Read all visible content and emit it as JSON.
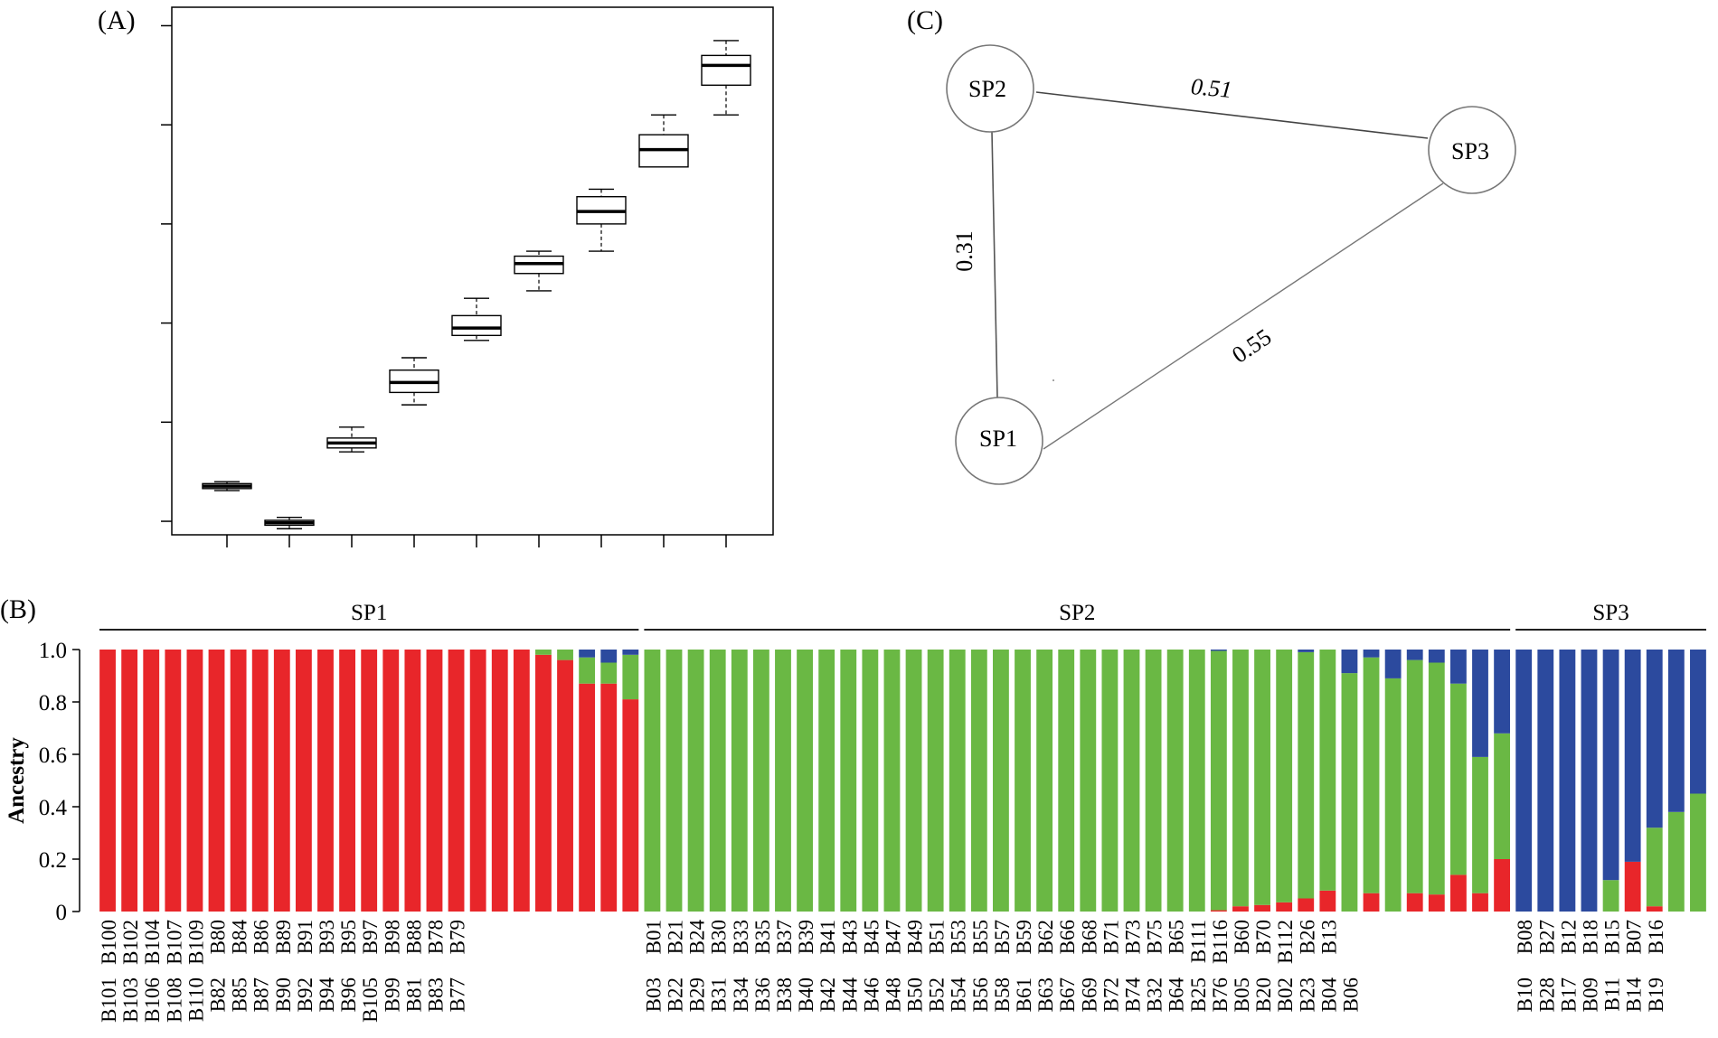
{
  "panel_labels": {
    "a": "(A)",
    "b": "(B)",
    "c": "(C)"
  },
  "colors": {
    "sp1": "#e8262a",
    "sp2": "#6ab844",
    "sp3": "#2c4a9e",
    "line": "#000000",
    "edge": "#777777"
  },
  "chart_data": [
    {
      "type": "box",
      "panel": "(A)",
      "title": "",
      "xlabel": "",
      "ylabel": "",
      "ylim": [
        -0.2,
        10.3
      ],
      "n_yticks": 6,
      "n_xticks": 9,
      "boxes": [
        {
          "whisker_low": 0.62,
          "q1": 0.66,
          "median": 0.71,
          "q3": 0.76,
          "whisker_high": 0.8
        },
        {
          "whisker_low": -0.15,
          "q1": -0.08,
          "median": -0.03,
          "q3": 0.02,
          "whisker_high": 0.08
        },
        {
          "whisker_low": 1.4,
          "q1": 1.48,
          "median": 1.58,
          "q3": 1.68,
          "whisker_high": 1.9
        },
        {
          "whisker_low": 2.35,
          "q1": 2.6,
          "median": 2.8,
          "q3": 3.05,
          "whisker_high": 3.3
        },
        {
          "whisker_low": 3.65,
          "q1": 3.75,
          "median": 3.9,
          "q3": 4.15,
          "whisker_high": 4.5
        },
        {
          "whisker_low": 4.65,
          "q1": 5.0,
          "median": 5.2,
          "q3": 5.35,
          "whisker_high": 5.45
        },
        {
          "whisker_low": 5.45,
          "q1": 6.0,
          "median": 6.25,
          "q3": 6.55,
          "whisker_high": 6.7
        },
        {
          "whisker_low": 7.15,
          "q1": 7.15,
          "median": 7.5,
          "q3": 7.8,
          "whisker_high": 8.2
        },
        {
          "whisker_low": 8.2,
          "q1": 8.8,
          "median": 9.2,
          "q3": 9.4,
          "whisker_high": 9.7
        }
      ]
    },
    {
      "type": "bar",
      "stacked": true,
      "panel": "(B)",
      "ylabel": "Ancestry",
      "ylim": [
        0,
        1.0
      ],
      "yticks": [
        "0",
        "0.2",
        "0.4",
        "0.6",
        "0.8",
        "1.0"
      ],
      "groups": [
        {
          "name": "SP1",
          "from": 0,
          "to": 24
        },
        {
          "name": "SP2",
          "from": 25,
          "to": 64
        },
        {
          "name": "SP3",
          "from": 65,
          "to": 73
        }
      ],
      "bars": [
        {
          "top": "B100",
          "bottom": "B101",
          "sp1": 1.0,
          "sp2": 0.0,
          "sp3": 0.0
        },
        {
          "top": "B102",
          "bottom": "B103",
          "sp1": 1.0,
          "sp2": 0.0,
          "sp3": 0.0
        },
        {
          "top": "B104",
          "bottom": "B106",
          "sp1": 1.0,
          "sp2": 0.0,
          "sp3": 0.0
        },
        {
          "top": "B107",
          "bottom": "B108",
          "sp1": 1.0,
          "sp2": 0.0,
          "sp3": 0.0
        },
        {
          "top": "B109",
          "bottom": "B110",
          "sp1": 1.0,
          "sp2": 0.0,
          "sp3": 0.0
        },
        {
          "top": "B80",
          "bottom": "B82",
          "sp1": 1.0,
          "sp2": 0.0,
          "sp3": 0.0
        },
        {
          "top": "B84",
          "bottom": "B85",
          "sp1": 1.0,
          "sp2": 0.0,
          "sp3": 0.0
        },
        {
          "top": "B86",
          "bottom": "B87",
          "sp1": 1.0,
          "sp2": 0.0,
          "sp3": 0.0
        },
        {
          "top": "B89",
          "bottom": "B90",
          "sp1": 1.0,
          "sp2": 0.0,
          "sp3": 0.0
        },
        {
          "top": "B91",
          "bottom": "B92",
          "sp1": 1.0,
          "sp2": 0.0,
          "sp3": 0.0
        },
        {
          "top": "B93",
          "bottom": "B94",
          "sp1": 1.0,
          "sp2": 0.0,
          "sp3": 0.0
        },
        {
          "top": "B95",
          "bottom": "B96",
          "sp1": 1.0,
          "sp2": 0.0,
          "sp3": 0.0
        },
        {
          "top": "B97",
          "bottom": "B105",
          "sp1": 1.0,
          "sp2": 0.0,
          "sp3": 0.0
        },
        {
          "top": "B98",
          "bottom": "B99",
          "sp1": 1.0,
          "sp2": 0.0,
          "sp3": 0.0
        },
        {
          "top": "B88",
          "bottom": "B81",
          "sp1": 1.0,
          "sp2": 0.0,
          "sp3": 0.0
        },
        {
          "top": "B78",
          "bottom": "B83",
          "sp1": 1.0,
          "sp2": 0.0,
          "sp3": 0.0
        },
        {
          "top": "B79",
          "bottom": "B77",
          "sp1": 1.0,
          "sp2": 0.0,
          "sp3": 0.0
        },
        {
          "top": "",
          "bottom": "",
          "sp1": 1.0,
          "sp2": 0.0,
          "sp3": 0.0
        },
        {
          "top": "",
          "bottom": "",
          "sp1": 1.0,
          "sp2": 0.0,
          "sp3": 0.0
        },
        {
          "top": "",
          "bottom": "",
          "sp1": 1.0,
          "sp2": 0.0,
          "sp3": 0.0
        },
        {
          "top": "",
          "bottom": "",
          "sp1": 0.98,
          "sp2": 0.02,
          "sp3": 0.0
        },
        {
          "top": "",
          "bottom": "",
          "sp1": 0.96,
          "sp2": 0.04,
          "sp3": 0.0
        },
        {
          "top": "",
          "bottom": "",
          "sp1": 0.87,
          "sp2": 0.1,
          "sp3": 0.03
        },
        {
          "top": "",
          "bottom": "",
          "sp1": 0.87,
          "sp2": 0.08,
          "sp3": 0.05
        },
        {
          "top": "",
          "bottom": "",
          "sp1": 0.81,
          "sp2": 0.17,
          "sp3": 0.02
        },
        {
          "top": "B01",
          "bottom": "B03",
          "sp1": 0.0,
          "sp2": 1.0,
          "sp3": 0.0
        },
        {
          "top": "B21",
          "bottom": "B22",
          "sp1": 0.0,
          "sp2": 1.0,
          "sp3": 0.0
        },
        {
          "top": "B24",
          "bottom": "B29",
          "sp1": 0.0,
          "sp2": 1.0,
          "sp3": 0.0
        },
        {
          "top": "B30",
          "bottom": "B31",
          "sp1": 0.0,
          "sp2": 1.0,
          "sp3": 0.0
        },
        {
          "top": "B33",
          "bottom": "B34",
          "sp1": 0.0,
          "sp2": 1.0,
          "sp3": 0.0
        },
        {
          "top": "B35",
          "bottom": "B36",
          "sp1": 0.0,
          "sp2": 1.0,
          "sp3": 0.0
        },
        {
          "top": "B37",
          "bottom": "B38",
          "sp1": 0.0,
          "sp2": 1.0,
          "sp3": 0.0
        },
        {
          "top": "B39",
          "bottom": "B40",
          "sp1": 0.0,
          "sp2": 1.0,
          "sp3": 0.0
        },
        {
          "top": "B41",
          "bottom": "B42",
          "sp1": 0.0,
          "sp2": 1.0,
          "sp3": 0.0
        },
        {
          "top": "B43",
          "bottom": "B44",
          "sp1": 0.0,
          "sp2": 1.0,
          "sp3": 0.0
        },
        {
          "top": "B45",
          "bottom": "B46",
          "sp1": 0.0,
          "sp2": 1.0,
          "sp3": 0.0
        },
        {
          "top": "B47",
          "bottom": "B48",
          "sp1": 0.0,
          "sp2": 1.0,
          "sp3": 0.0
        },
        {
          "top": "B49",
          "bottom": "B50",
          "sp1": 0.0,
          "sp2": 1.0,
          "sp3": 0.0
        },
        {
          "top": "B51",
          "bottom": "B52",
          "sp1": 0.0,
          "sp2": 1.0,
          "sp3": 0.0
        },
        {
          "top": "B53",
          "bottom": "B54",
          "sp1": 0.0,
          "sp2": 1.0,
          "sp3": 0.0
        },
        {
          "top": "B55",
          "bottom": "B56",
          "sp1": 0.0,
          "sp2": 1.0,
          "sp3": 0.0
        },
        {
          "top": "B57",
          "bottom": "B58",
          "sp1": 0.0,
          "sp2": 1.0,
          "sp3": 0.0
        },
        {
          "top": "B59",
          "bottom": "B61",
          "sp1": 0.0,
          "sp2": 1.0,
          "sp3": 0.0
        },
        {
          "top": "B62",
          "bottom": "B63",
          "sp1": 0.0,
          "sp2": 1.0,
          "sp3": 0.0
        },
        {
          "top": "B66",
          "bottom": "B67",
          "sp1": 0.0,
          "sp2": 1.0,
          "sp3": 0.0
        },
        {
          "top": "B68",
          "bottom": "B69",
          "sp1": 0.0,
          "sp2": 1.0,
          "sp3": 0.0
        },
        {
          "top": "B71",
          "bottom": "B72",
          "sp1": 0.0,
          "sp2": 1.0,
          "sp3": 0.0
        },
        {
          "top": "B73",
          "bottom": "B74",
          "sp1": 0.0,
          "sp2": 1.0,
          "sp3": 0.0
        },
        {
          "top": "B75",
          "bottom": "B32",
          "sp1": 0.0,
          "sp2": 1.0,
          "sp3": 0.0
        },
        {
          "top": "B65",
          "bottom": "B64",
          "sp1": 0.0,
          "sp2": 1.0,
          "sp3": 0.0
        },
        {
          "top": "B111",
          "bottom": "B25",
          "sp1": 0.0,
          "sp2": 1.0,
          "sp3": 0.0
        },
        {
          "top": "B116",
          "bottom": "B76",
          "sp1": 0.005,
          "sp2": 0.99,
          "sp3": 0.005
        },
        {
          "top": "B60",
          "bottom": "B05",
          "sp1": 0.02,
          "sp2": 0.98,
          "sp3": 0.0
        },
        {
          "top": "B70",
          "bottom": "B20",
          "sp1": 0.025,
          "sp2": 0.975,
          "sp3": 0.0
        },
        {
          "top": "B112",
          "bottom": "B02",
          "sp1": 0.035,
          "sp2": 0.965,
          "sp3": 0.0
        },
        {
          "top": "B26",
          "bottom": "B23",
          "sp1": 0.05,
          "sp2": 0.94,
          "sp3": 0.01
        },
        {
          "top": "B13",
          "bottom": "B04",
          "sp1": 0.08,
          "sp2": 0.92,
          "sp3": 0.0
        },
        {
          "top": "",
          "bottom": "B06",
          "sp1": 0.0,
          "sp2": 0.91,
          "sp3": 0.09
        },
        {
          "top": "",
          "bottom": "",
          "sp1": 0.07,
          "sp2": 0.9,
          "sp3": 0.03
        },
        {
          "top": "",
          "bottom": "",
          "sp1": 0.0,
          "sp2": 0.89,
          "sp3": 0.11
        },
        {
          "top": "",
          "bottom": "",
          "sp1": 0.07,
          "sp2": 0.89,
          "sp3": 0.04
        },
        {
          "top": "",
          "bottom": "",
          "sp1": 0.065,
          "sp2": 0.885,
          "sp3": 0.05
        },
        {
          "top": "",
          "bottom": "",
          "sp1": 0.14,
          "sp2": 0.73,
          "sp3": 0.13
        },
        {
          "top": "",
          "bottom": "",
          "sp1": 0.07,
          "sp2": 0.52,
          "sp3": 0.41
        },
        {
          "top": "",
          "bottom": "",
          "sp1": 0.2,
          "sp2": 0.48,
          "sp3": 0.32
        },
        {
          "top": "B08",
          "bottom": "B10",
          "sp1": 0.0,
          "sp2": 0.0,
          "sp3": 1.0
        },
        {
          "top": "B27",
          "bottom": "B28",
          "sp1": 0.0,
          "sp2": 0.0,
          "sp3": 1.0
        },
        {
          "top": "B12",
          "bottom": "B17",
          "sp1": 0.0,
          "sp2": 0.0,
          "sp3": 1.0
        },
        {
          "top": "B18",
          "bottom": "B09",
          "sp1": 0.0,
          "sp2": 0.0,
          "sp3": 1.0
        },
        {
          "top": "B15",
          "bottom": "B11",
          "sp1": 0.0,
          "sp2": 0.12,
          "sp3": 0.88
        },
        {
          "top": "B07",
          "bottom": "B14",
          "sp1": 0.19,
          "sp2": 0.0,
          "sp3": 0.81
        },
        {
          "top": "B16",
          "bottom": "B19",
          "sp1": 0.02,
          "sp2": 0.3,
          "sp3": 0.68
        },
        {
          "top": "",
          "bottom": "",
          "sp1": 0.0,
          "sp2": 0.38,
          "sp3": 0.62
        },
        {
          "top": "",
          "bottom": "",
          "sp1": 0.0,
          "sp2": 0.45,
          "sp3": 0.55
        }
      ]
    },
    {
      "type": "network",
      "panel": "(C)",
      "nodes": [
        {
          "id": "SP1",
          "label": "SP1"
        },
        {
          "id": "SP2",
          "label": "SP2"
        },
        {
          "id": "SP3",
          "label": "SP3"
        }
      ],
      "edges": [
        {
          "source": "SP2",
          "target": "SP3",
          "label": "0.51",
          "italic": true
        },
        {
          "source": "SP2",
          "target": "SP1",
          "label": "0.31",
          "italic": false
        },
        {
          "source": "SP1",
          "target": "SP3",
          "label": "0.55",
          "italic": false
        }
      ]
    }
  ]
}
